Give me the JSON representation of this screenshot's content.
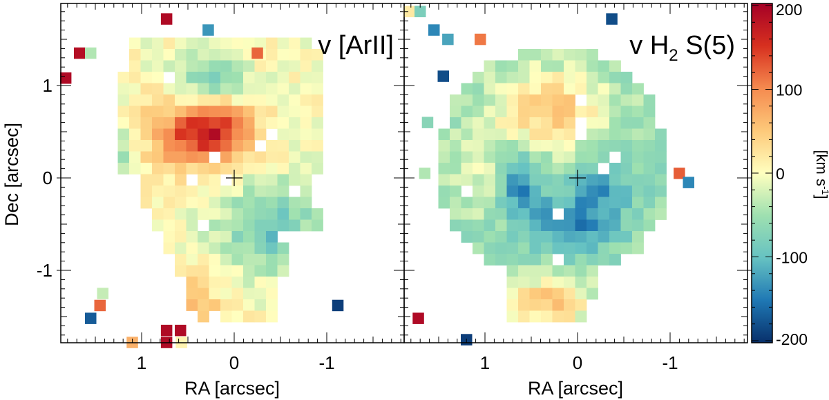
{
  "chart_data": [
    {
      "type": "heatmap",
      "title": "v [ArII]",
      "xlabel": "RA [arcsec]",
      "ylabel": "Dec [arcsec]",
      "xlim": [
        1.85,
        -1.85
      ],
      "ylim": [
        -1.85,
        1.85
      ],
      "x_ticks": [
        {
          "value": 1,
          "label": "1"
        },
        {
          "value": 0,
          "label": "0"
        },
        {
          "value": -1,
          "label": "-1"
        }
      ],
      "y_ticks": [
        {
          "value": 1,
          "label": "1"
        },
        {
          "value": 0,
          "label": "0"
        },
        {
          "value": -1,
          "label": "-1"
        }
      ],
      "center_marker": [
        0,
        0
      ],
      "grid": false,
      "legend": "none"
    },
    {
      "type": "heatmap",
      "title": "v H",
      "title_subscript": "2",
      "title_suffix": " S(5)",
      "xlabel": "RA [arcsec]",
      "ylabel": "",
      "xlim": [
        1.85,
        -1.85
      ],
      "ylim": [
        -1.85,
        1.85
      ],
      "x_ticks": [
        {
          "value": 1,
          "label": "1"
        },
        {
          "value": 0,
          "label": "0"
        },
        {
          "value": -1,
          "label": "-1"
        }
      ],
      "center_marker": [
        0,
        0
      ],
      "grid": false,
      "legend": "none"
    }
  ],
  "colorbar": {
    "label": "[km s",
    "label_superscript": "-1",
    "label_suffix": "]",
    "range": [
      -200,
      200
    ],
    "ticks": [
      {
        "value": 200,
        "label": "200"
      },
      {
        "value": 100,
        "label": "100"
      },
      {
        "value": 0,
        "label": "0"
      },
      {
        "value": -100,
        "label": "-100"
      },
      {
        "value": -200,
        "label": "-200"
      }
    ],
    "colormap": [
      "#08306b",
      "#1f78b4",
      "#66c2c2",
      "#9ee0b0",
      "#ffffbf",
      "#fdc97a",
      "#f58a4f",
      "#d7301f",
      "#a50026"
    ]
  }
}
